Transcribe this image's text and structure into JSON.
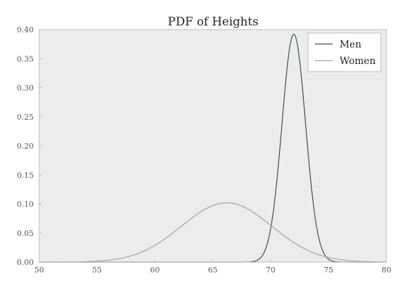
{
  "chart_data": {
    "type": "line",
    "title": "PDF of Heights",
    "xlabel": "",
    "ylabel": "",
    "xlim": [
      50,
      80
    ],
    "ylim": [
      0,
      0.4
    ],
    "x_ticks": [
      50,
      55,
      60,
      65,
      70,
      75,
      80
    ],
    "x_tick_labels": [
      "50",
      "55",
      "60",
      "65",
      "70",
      "75",
      "80"
    ],
    "y_ticks": [
      0,
      0.05,
      0.1,
      0.15,
      0.2,
      0.25,
      0.3,
      0.35,
      0.4
    ],
    "y_tick_labels": [
      "0.00",
      "0.05",
      "0.10",
      "0.15",
      "0.20",
      "0.25",
      "0.30",
      "0.35",
      "0.40"
    ],
    "grid": false,
    "legend_position": "top-right",
    "series": [
      {
        "name": "Men",
        "distribution": "normal",
        "mean": 72.0,
        "std": 1.02,
        "peak": 0.392,
        "color": "#3f4a4a"
      },
      {
        "name": "Women",
        "distribution": "normal",
        "mean": 66.2,
        "std": 3.9,
        "peak": 0.102,
        "color": "#94a8a8"
      }
    ]
  },
  "colors": {
    "plot_background": "#ececec",
    "axes_border": "#bcbcbc",
    "legend_background": "#ffffff"
  }
}
